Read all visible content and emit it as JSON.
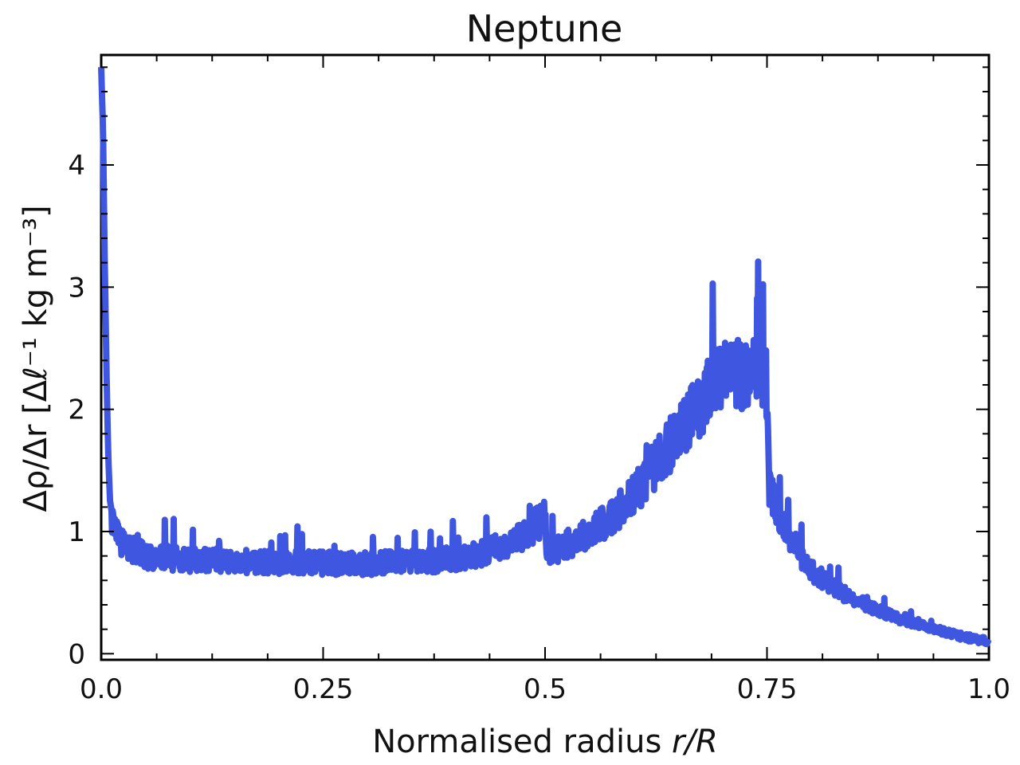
{
  "chart_data": {
    "type": "line",
    "title": "Neptune",
    "xlabel": "Normalised radius ",
    "xlabel_italic": "r/R",
    "ylabel": "Δρ/Δr [Δℓ⁻¹ kg m⁻³]",
    "xlim": [
      0.0,
      1.0
    ],
    "ylim": [
      -0.05,
      4.9
    ],
    "x_ticks": [
      0.0,
      0.25,
      0.5,
      0.75,
      1.0
    ],
    "x_tick_labels": [
      "0.0",
      "0.25",
      "0.5",
      "0.75",
      "1.0"
    ],
    "y_ticks": [
      0,
      1,
      2,
      3,
      4
    ],
    "y_tick_labels": [
      "0",
      "1",
      "2",
      "3",
      "4"
    ],
    "grid": false,
    "line_color": "#3f57e0",
    "series": [
      {
        "x": [
          0.0,
          0.002,
          0.004,
          0.006,
          0.008,
          0.01,
          0.014,
          0.02,
          0.03,
          0.05,
          0.08,
          0.1,
          0.15,
          0.2,
          0.25,
          0.3,
          0.35,
          0.4,
          0.43,
          0.46,
          0.48,
          0.498,
          0.5,
          0.502,
          0.52,
          0.55,
          0.58,
          0.6,
          0.62,
          0.64,
          0.66,
          0.68,
          0.7,
          0.72,
          0.74,
          0.748,
          0.75,
          0.752,
          0.76,
          0.78,
          0.8,
          0.83,
          0.86,
          0.9,
          0.94,
          0.97,
          1.0
        ],
        "y": [
          4.8,
          4.3,
          3.2,
          2.3,
          1.6,
          1.25,
          1.05,
          0.93,
          0.86,
          0.8,
          0.78,
          0.77,
          0.76,
          0.75,
          0.74,
          0.74,
          0.75,
          0.78,
          0.82,
          0.9,
          1.0,
          1.1,
          1.12,
          0.82,
          0.88,
          0.98,
          1.15,
          1.3,
          1.5,
          1.7,
          1.9,
          2.1,
          2.25,
          2.3,
          2.3,
          2.25,
          2.2,
          1.35,
          1.2,
          0.9,
          0.68,
          0.52,
          0.4,
          0.28,
          0.2,
          0.14,
          0.1
        ]
      }
    ]
  }
}
